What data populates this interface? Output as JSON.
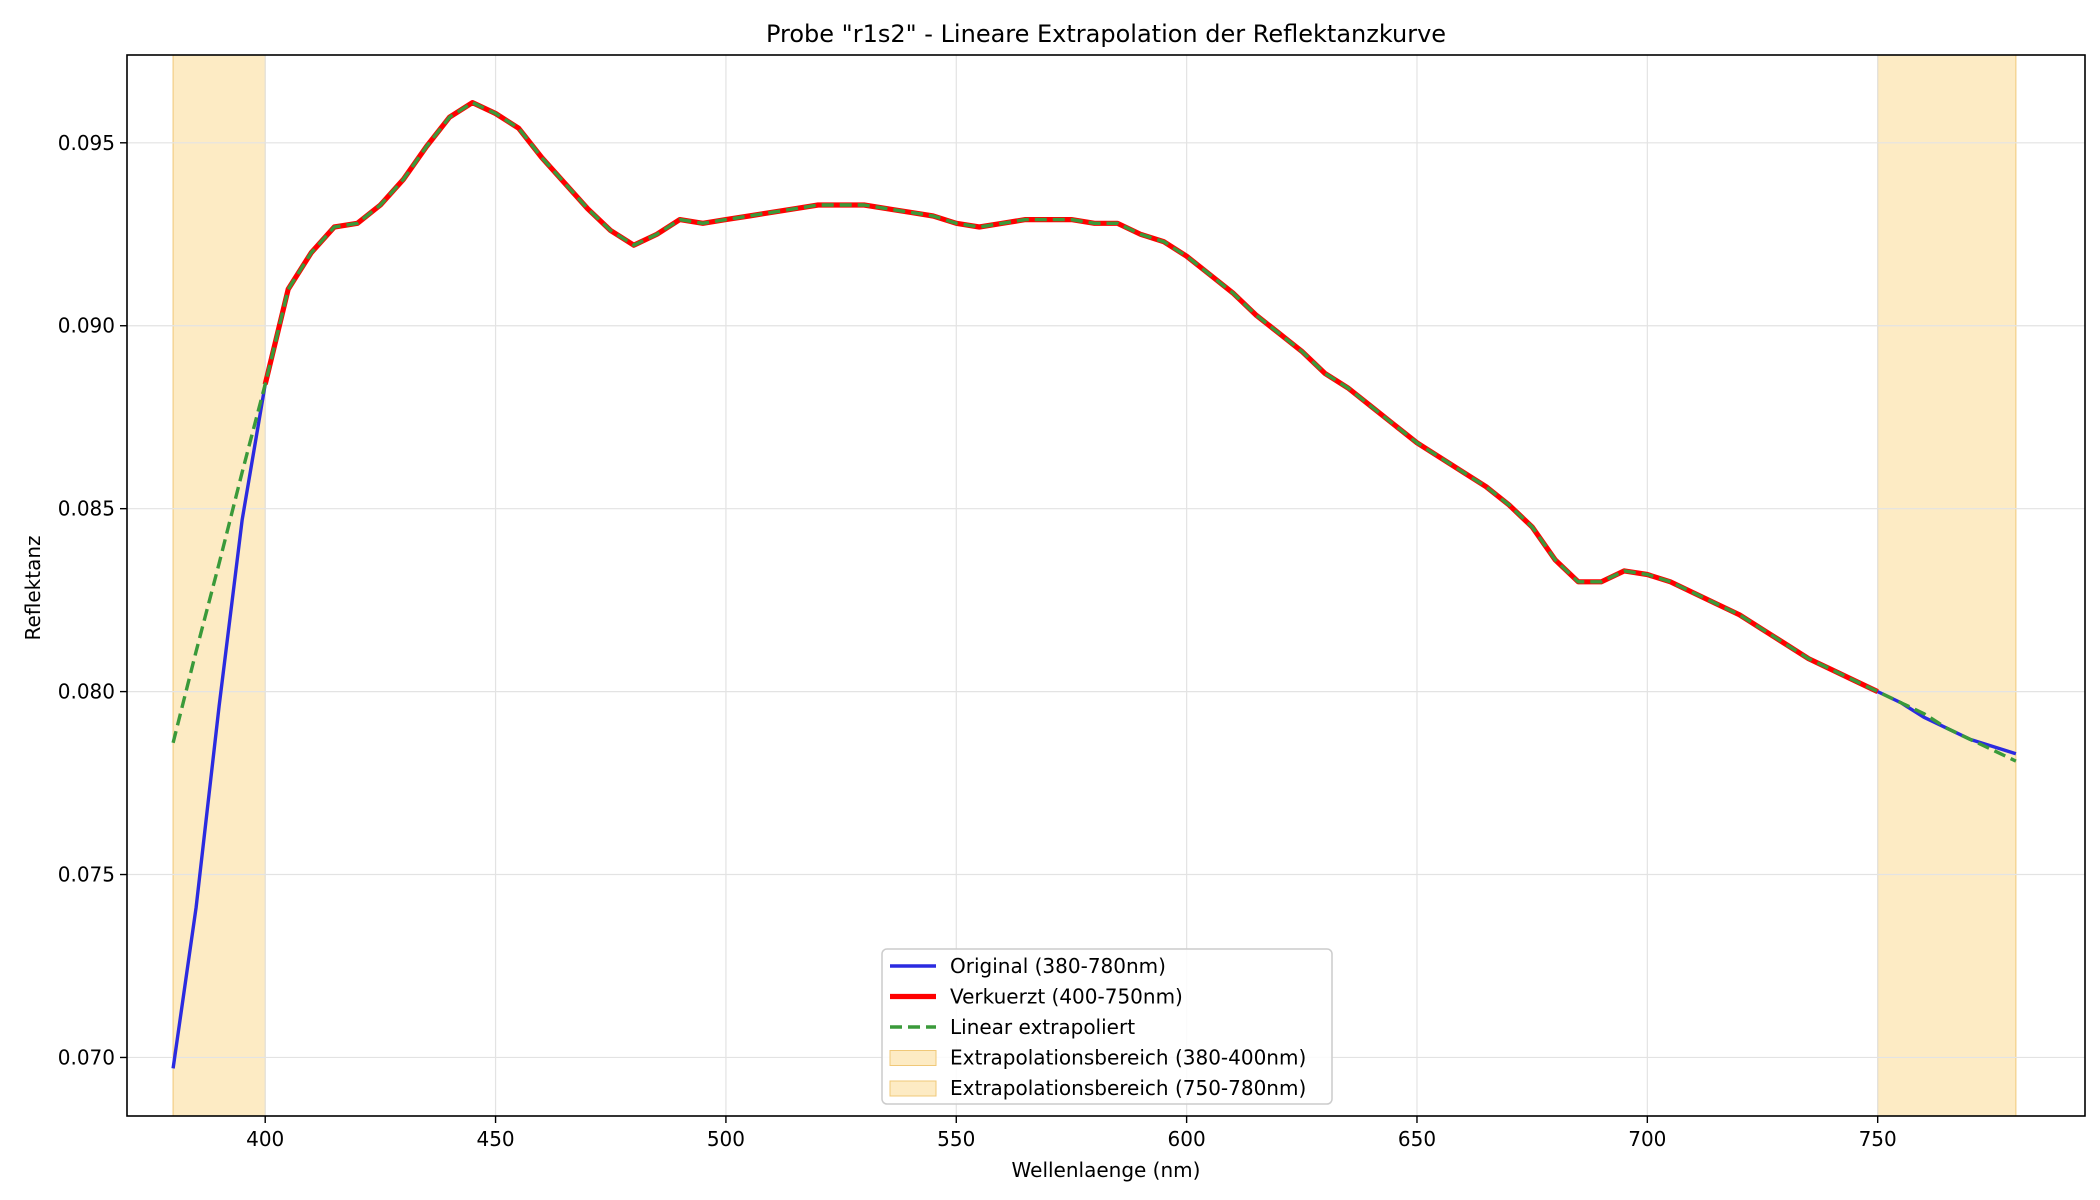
{
  "chart_data": {
    "type": "line",
    "title": "Probe \"r1s2\" - Lineare Extrapolation der Reflektanzkurve",
    "xlabel": "Wellenlaenge (nm)",
    "ylabel": "Reflektanz",
    "xlim": [
      370,
      795
    ],
    "ylim": [
      0.0684,
      0.0974
    ],
    "xticks": [
      400,
      450,
      500,
      550,
      600,
      650,
      700,
      750
    ],
    "xtick_labels": [
      "400",
      "450",
      "500",
      "550",
      "600",
      "650",
      "700",
      "750"
    ],
    "yticks": [
      0.07,
      0.075,
      0.08,
      0.085,
      0.09,
      0.095
    ],
    "ytick_labels": [
      "0.070",
      "0.075",
      "0.080",
      "0.085",
      "0.090",
      "0.095"
    ],
    "grid": true,
    "legend_position": "lower center",
    "shaded_regions": [
      {
        "label": "Extrapolationsbereich (380-400nm)",
        "x_range": [
          380,
          400
        ],
        "color": "#fdebc4"
      },
      {
        "label": "Extrapolationsbereich (750-780nm)",
        "x_range": [
          750,
          780
        ],
        "color": "#fdebc4"
      }
    ],
    "series": [
      {
        "name": "Original (380-780nm)",
        "color": "#2b2be0",
        "style": "solid",
        "x": [
          380,
          385,
          390,
          395,
          400,
          405,
          410,
          415,
          420,
          425,
          430,
          435,
          440,
          445,
          450,
          455,
          460,
          465,
          470,
          475,
          480,
          485,
          490,
          495,
          500,
          505,
          510,
          515,
          520,
          525,
          530,
          535,
          540,
          545,
          550,
          555,
          560,
          565,
          570,
          575,
          580,
          585,
          590,
          595,
          600,
          605,
          610,
          615,
          620,
          625,
          630,
          635,
          640,
          645,
          650,
          655,
          660,
          665,
          670,
          675,
          680,
          685,
          690,
          695,
          700,
          705,
          710,
          715,
          720,
          725,
          730,
          735,
          740,
          745,
          750,
          755,
          760,
          765,
          770,
          775,
          780
        ],
        "values": [
          0.0697,
          0.0741,
          0.0796,
          0.0847,
          0.0884,
          0.091,
          0.092,
          0.0927,
          0.0928,
          0.0933,
          0.094,
          0.0949,
          0.0957,
          0.0961,
          0.0958,
          0.0954,
          0.0946,
          0.0939,
          0.0932,
          0.0926,
          0.0922,
          0.0925,
          0.0929,
          0.0928,
          0.0929,
          0.093,
          0.0931,
          0.0932,
          0.0933,
          0.0933,
          0.0933,
          0.0932,
          0.0931,
          0.093,
          0.0928,
          0.0927,
          0.0928,
          0.0929,
          0.0929,
          0.0929,
          0.0928,
          0.0928,
          0.0925,
          0.0923,
          0.0919,
          0.0914,
          0.0909,
          0.0903,
          0.0898,
          0.0893,
          0.0887,
          0.0883,
          0.0878,
          0.0873,
          0.0868,
          0.0864,
          0.086,
          0.0856,
          0.0851,
          0.0845,
          0.0836,
          0.083,
          0.083,
          0.0833,
          0.0832,
          0.083,
          0.0827,
          0.0824,
          0.0821,
          0.0817,
          0.0813,
          0.0809,
          0.0806,
          0.0803,
          0.08,
          0.0797,
          0.0793,
          0.079,
          0.0787,
          0.0785,
          0.0783
        ]
      },
      {
        "name": "Verkuerzt (400-750nm)",
        "color": "#ff0000",
        "style": "solid",
        "x": [
          400,
          405,
          410,
          415,
          420,
          425,
          430,
          435,
          440,
          445,
          450,
          455,
          460,
          465,
          470,
          475,
          480,
          485,
          490,
          495,
          500,
          505,
          510,
          515,
          520,
          525,
          530,
          535,
          540,
          545,
          550,
          555,
          560,
          565,
          570,
          575,
          580,
          585,
          590,
          595,
          600,
          605,
          610,
          615,
          620,
          625,
          630,
          635,
          640,
          645,
          650,
          655,
          660,
          665,
          670,
          675,
          680,
          685,
          690,
          695,
          700,
          705,
          710,
          715,
          720,
          725,
          730,
          735,
          740,
          745,
          750
        ],
        "values": [
          0.0884,
          0.091,
          0.092,
          0.0927,
          0.0928,
          0.0933,
          0.094,
          0.0949,
          0.0957,
          0.0961,
          0.0958,
          0.0954,
          0.0946,
          0.0939,
          0.0932,
          0.0926,
          0.0922,
          0.0925,
          0.0929,
          0.0928,
          0.0929,
          0.093,
          0.0931,
          0.0932,
          0.0933,
          0.0933,
          0.0933,
          0.0932,
          0.0931,
          0.093,
          0.0928,
          0.0927,
          0.0928,
          0.0929,
          0.0929,
          0.0929,
          0.0928,
          0.0928,
          0.0925,
          0.0923,
          0.0919,
          0.0914,
          0.0909,
          0.0903,
          0.0898,
          0.0893,
          0.0887,
          0.0883,
          0.0878,
          0.0873,
          0.0868,
          0.0864,
          0.086,
          0.0856,
          0.0851,
          0.0845,
          0.0836,
          0.083,
          0.083,
          0.0833,
          0.0832,
          0.083,
          0.0827,
          0.0824,
          0.0821,
          0.0817,
          0.0813,
          0.0809,
          0.0806,
          0.0803,
          0.08
        ]
      },
      {
        "name": "Linear extrapoliert",
        "color": "#3a9a3a",
        "style": "dashed",
        "x": [
          380,
          385,
          390,
          395,
          400,
          405,
          410,
          415,
          420,
          425,
          430,
          435,
          440,
          445,
          450,
          455,
          460,
          465,
          470,
          475,
          480,
          485,
          490,
          495,
          500,
          505,
          510,
          515,
          520,
          525,
          530,
          535,
          540,
          545,
          550,
          555,
          560,
          565,
          570,
          575,
          580,
          585,
          590,
          595,
          600,
          605,
          610,
          615,
          620,
          625,
          630,
          635,
          640,
          645,
          650,
          655,
          660,
          665,
          670,
          675,
          680,
          685,
          690,
          695,
          700,
          705,
          710,
          715,
          720,
          725,
          730,
          735,
          740,
          745,
          750,
          755,
          760,
          765,
          770,
          775,
          780
        ],
        "values": [
          0.0786,
          0.0811,
          0.0835,
          0.086,
          0.0884,
          0.091,
          0.092,
          0.0927,
          0.0928,
          0.0933,
          0.094,
          0.0949,
          0.0957,
          0.0961,
          0.0958,
          0.0954,
          0.0946,
          0.0939,
          0.0932,
          0.0926,
          0.0922,
          0.0925,
          0.0929,
          0.0928,
          0.0929,
          0.093,
          0.0931,
          0.0932,
          0.0933,
          0.0933,
          0.0933,
          0.0932,
          0.0931,
          0.093,
          0.0928,
          0.0927,
          0.0928,
          0.0929,
          0.0929,
          0.0929,
          0.0928,
          0.0928,
          0.0925,
          0.0923,
          0.0919,
          0.0914,
          0.0909,
          0.0903,
          0.0898,
          0.0893,
          0.0887,
          0.0883,
          0.0878,
          0.0873,
          0.0868,
          0.0864,
          0.086,
          0.0856,
          0.0851,
          0.0845,
          0.0836,
          0.083,
          0.083,
          0.0833,
          0.0832,
          0.083,
          0.0827,
          0.0824,
          0.0821,
          0.0817,
          0.0813,
          0.0809,
          0.0806,
          0.0803,
          0.08,
          0.0797,
          0.0794,
          0.079,
          0.0787,
          0.0784,
          0.0781
        ]
      }
    ]
  }
}
